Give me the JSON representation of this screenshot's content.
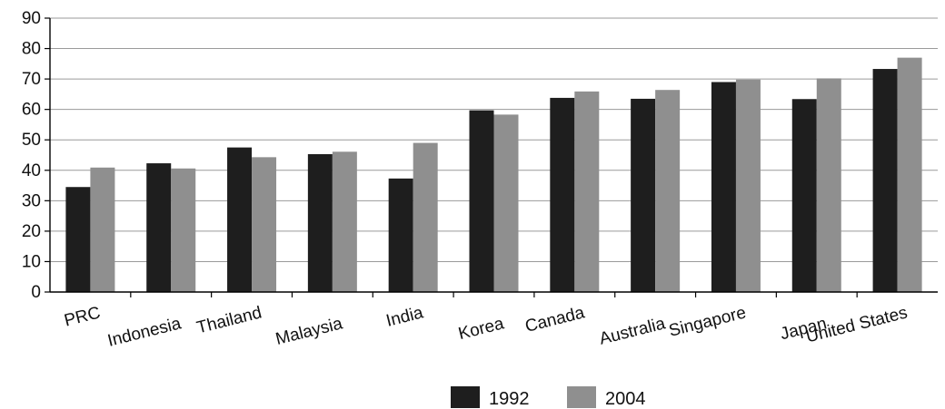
{
  "chart_data": {
    "type": "bar",
    "categories": [
      "PRC",
      "Indonesia",
      "Thailand",
      "Malaysia",
      "India",
      "Korea",
      "Canada",
      "Australia",
      "Singapore",
      "Japan",
      "United States"
    ],
    "series": [
      {
        "name": "1992",
        "color": "#1e1e1e",
        "values": [
          34.5,
          42.3,
          47.5,
          45.3,
          37.3,
          59.7,
          63.8,
          63.5,
          69.0,
          63.4,
          73.3
        ]
      },
      {
        "name": "2004",
        "color": "#8f8f8f",
        "values": [
          40.9,
          40.6,
          44.3,
          46.1,
          49.0,
          58.3,
          65.9,
          66.4,
          69.8,
          70.2,
          77.0
        ]
      }
    ],
    "yticks": [
      0,
      10,
      20,
      30,
      40,
      50,
      60,
      70,
      80,
      90
    ],
    "ylim": [
      0,
      90
    ],
    "grid": true,
    "legend_position": "bottom-center"
  }
}
